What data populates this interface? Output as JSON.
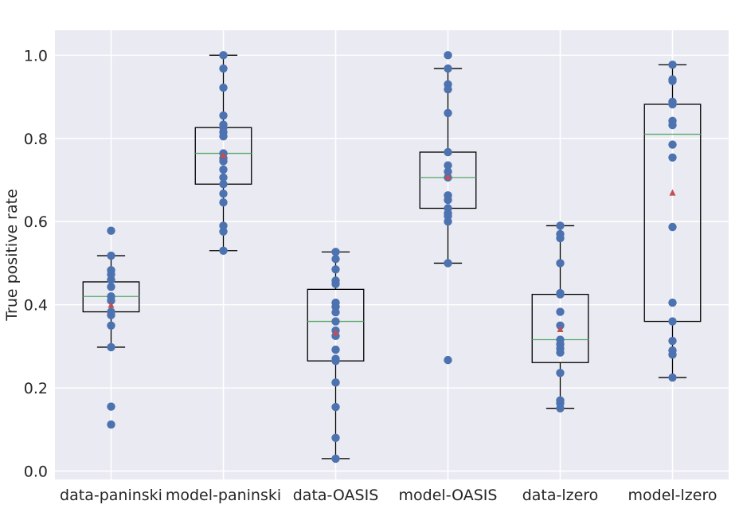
{
  "chart_data": {
    "type": "box",
    "ylabel": "True positive rate",
    "xlabel": "",
    "ylim": [
      -0.02,
      1.06
    ],
    "yticks": [
      0.0,
      0.2,
      0.4,
      0.6,
      0.8,
      1.0
    ],
    "ytick_labels": [
      "0.0",
      "0.2",
      "0.4",
      "0.6",
      "0.8",
      "1.0"
    ],
    "grid": true,
    "colors": {
      "background": "#EAEAF2",
      "grid": "#FFFFFF",
      "point": "#4C72B0",
      "median": "#55A868",
      "mean_marker": "#C44E52",
      "box": "#000000"
    },
    "categories": [
      "data-paninski",
      "model-paninski",
      "data-OASIS",
      "model-OASIS",
      "data-lzero",
      "model-lzero"
    ],
    "boxes": [
      {
        "q1": 0.383,
        "median": 0.42,
        "q3": 0.455,
        "whisker_low": 0.298,
        "whisker_high": 0.518,
        "mean": 0.4
      },
      {
        "q1": 0.69,
        "median": 0.764,
        "q3": 0.826,
        "whisker_low": 0.53,
        "whisker_high": 1.0,
        "mean": 0.76
      },
      {
        "q1": 0.265,
        "median": 0.36,
        "q3": 0.437,
        "whisker_low": 0.03,
        "whisker_high": 0.527,
        "mean": 0.334
      },
      {
        "q1": 0.632,
        "median": 0.706,
        "q3": 0.767,
        "whisker_low": 0.5,
        "whisker_high": 0.968,
        "mean": 0.708
      },
      {
        "q1": 0.261,
        "median": 0.316,
        "q3": 0.425,
        "whisker_low": 0.151,
        "whisker_high": 0.59,
        "mean": 0.342
      },
      {
        "q1": 0.36,
        "median": 0.81,
        "q3": 0.882,
        "whisker_low": 0.225,
        "whisker_high": 0.977,
        "mean": 0.67
      }
    ],
    "points": [
      [
        0.578,
        0.518,
        0.483,
        0.473,
        0.46,
        0.443,
        0.42,
        0.41,
        0.383,
        0.375,
        0.35,
        0.298,
        0.155,
        0.112
      ],
      [
        1.0,
        0.968,
        0.922,
        0.855,
        0.833,
        0.826,
        0.815,
        0.805,
        0.764,
        0.752,
        0.745,
        0.725,
        0.706,
        0.69,
        0.667,
        0.646,
        0.59,
        0.576,
        0.53
      ],
      [
        0.527,
        0.51,
        0.485,
        0.458,
        0.45,
        0.405,
        0.395,
        0.382,
        0.36,
        0.338,
        0.325,
        0.292,
        0.27,
        0.265,
        0.213,
        0.154,
        0.08,
        0.03
      ],
      [
        1.0,
        0.968,
        0.93,
        0.918,
        0.861,
        0.767,
        0.735,
        0.72,
        0.706,
        0.663,
        0.652,
        0.632,
        0.62,
        0.613,
        0.6,
        0.5,
        0.267
      ],
      [
        0.59,
        0.57,
        0.56,
        0.5,
        0.428,
        0.425,
        0.383,
        0.35,
        0.316,
        0.305,
        0.295,
        0.285,
        0.236,
        0.17,
        0.163,
        0.151
      ],
      [
        0.977,
        0.942,
        0.938,
        0.888,
        0.882,
        0.842,
        0.832,
        0.785,
        0.754,
        0.587,
        0.405,
        0.36,
        0.313,
        0.29,
        0.28,
        0.225
      ]
    ]
  }
}
